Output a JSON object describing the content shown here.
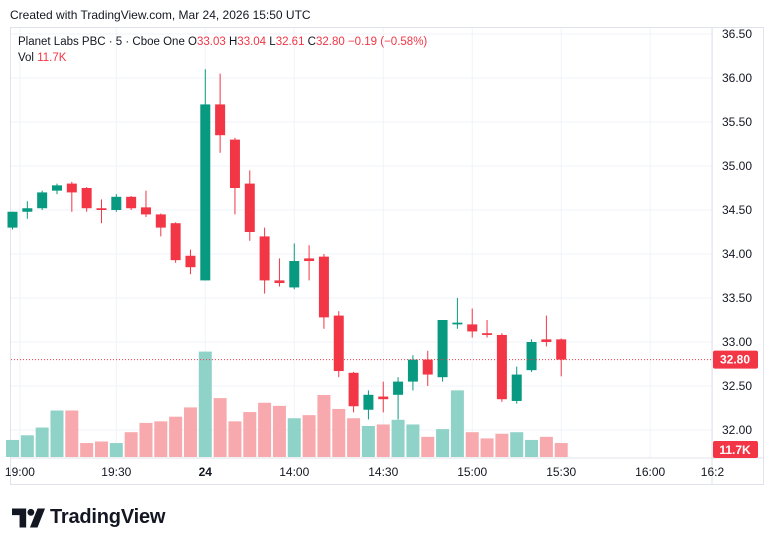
{
  "header": {
    "text": "Created with TradingView.com, Mar 24, 2026 15:50 UTC"
  },
  "legend": {
    "symbol": "Planet Labs PBC · 5 · Cboe One",
    "o_label": "O",
    "o_value": "33.03",
    "h_label": "H",
    "h_value": "33.04",
    "l_label": "L",
    "l_value": "32.61",
    "c_label": "C",
    "c_value": "32.80",
    "change": "−0.19 (−0.58%)",
    "vol_label": "Vol",
    "vol_value": "11.7K"
  },
  "footer": {
    "brand": "TradingView"
  },
  "colors": {
    "up": "#089981",
    "down": "#f23645",
    "vol_up": "#8fd2c8",
    "vol_down": "#f7a9ad",
    "grid": "#f0f3fa"
  },
  "chart_data": {
    "type": "candlestick",
    "y_ticks": [
      "36.50",
      "36.00",
      "35.50",
      "35.00",
      "34.50",
      "34.00",
      "33.50",
      "33.00",
      "32.50",
      "32.00"
    ],
    "y_range": [
      31.85,
      36.65
    ],
    "x_ticks": [
      {
        "label": "19:00",
        "slot": 0.5,
        "bold": false
      },
      {
        "label": "19:30",
        "slot": 7,
        "bold": false
      },
      {
        "label": "24",
        "slot": 13,
        "bold": true
      },
      {
        "label": "14:00",
        "slot": 19,
        "bold": false
      },
      {
        "label": "14:30",
        "slot": 25,
        "bold": false
      },
      {
        "label": "15:00",
        "slot": 31,
        "bold": false
      },
      {
        "label": "15:30",
        "slot": 37,
        "bold": false
      },
      {
        "label": "16:00",
        "slot": 43,
        "bold": false
      },
      {
        "label": "16:2",
        "slot": 47.2,
        "bold": false
      }
    ],
    "last_price": "32.80",
    "last_volume": "11.7K",
    "candles": [
      {
        "o": 34.3,
        "h": 34.48,
        "l": 34.28,
        "c": 34.48,
        "v": 1.1
      },
      {
        "o": 34.48,
        "h": 34.6,
        "l": 34.4,
        "c": 34.52,
        "v": 1.4
      },
      {
        "o": 34.52,
        "h": 34.72,
        "l": 34.5,
        "c": 34.7,
        "v": 1.9
      },
      {
        "o": 34.72,
        "h": 34.8,
        "l": 34.68,
        "c": 34.78,
        "v": 3.0
      },
      {
        "o": 34.8,
        "h": 34.82,
        "l": 34.48,
        "c": 34.7,
        "v": 3.0
      },
      {
        "o": 34.75,
        "h": 34.76,
        "l": 34.48,
        "c": 34.52,
        "v": 0.9
      },
      {
        "o": 34.52,
        "h": 34.62,
        "l": 34.35,
        "c": 34.5,
        "v": 1.0
      },
      {
        "o": 34.5,
        "h": 34.68,
        "l": 34.48,
        "c": 34.65,
        "v": 0.9
      },
      {
        "o": 34.65,
        "h": 34.66,
        "l": 34.5,
        "c": 34.52,
        "v": 1.6
      },
      {
        "o": 34.53,
        "h": 34.72,
        "l": 34.42,
        "c": 34.45,
        "v": 2.2
      },
      {
        "o": 34.45,
        "h": 34.46,
        "l": 34.2,
        "c": 34.3,
        "v": 2.3
      },
      {
        "o": 34.35,
        "h": 34.36,
        "l": 33.9,
        "c": 33.93,
        "v": 2.6
      },
      {
        "o": 33.98,
        "h": 34.05,
        "l": 33.77,
        "c": 33.85,
        "v": 3.2
      },
      {
        "o": 33.7,
        "h": 36.1,
        "l": 33.7,
        "c": 35.7,
        "v": 6.8
      },
      {
        "o": 35.7,
        "h": 36.05,
        "l": 35.15,
        "c": 35.35,
        "v": 3.8
      },
      {
        "o": 35.3,
        "h": 35.32,
        "l": 34.45,
        "c": 34.75,
        "v": 2.3
      },
      {
        "o": 34.8,
        "h": 34.95,
        "l": 34.15,
        "c": 34.25,
        "v": 2.9
      },
      {
        "o": 34.2,
        "h": 34.3,
        "l": 33.55,
        "c": 33.7,
        "v": 3.5
      },
      {
        "o": 33.7,
        "h": 33.95,
        "l": 33.63,
        "c": 33.67,
        "v": 3.3
      },
      {
        "o": 33.62,
        "h": 34.12,
        "l": 33.6,
        "c": 33.92,
        "v": 2.5
      },
      {
        "o": 33.95,
        "h": 34.1,
        "l": 33.7,
        "c": 33.92,
        "v": 2.7
      },
      {
        "o": 33.97,
        "h": 34.0,
        "l": 33.15,
        "c": 33.28,
        "v": 4.0
      },
      {
        "o": 33.3,
        "h": 33.35,
        "l": 32.6,
        "c": 32.67,
        "v": 3.1
      },
      {
        "o": 32.65,
        "h": 32.66,
        "l": 32.2,
        "c": 32.27,
        "v": 2.5
      },
      {
        "o": 32.23,
        "h": 32.45,
        "l": 32.12,
        "c": 32.4,
        "v": 2.0
      },
      {
        "o": 32.38,
        "h": 32.55,
        "l": 32.2,
        "c": 32.35,
        "v": 2.1
      },
      {
        "o": 32.4,
        "h": 32.6,
        "l": 32.12,
        "c": 32.55,
        "v": 2.4
      },
      {
        "o": 32.55,
        "h": 32.85,
        "l": 32.45,
        "c": 32.8,
        "v": 2.1
      },
      {
        "o": 32.8,
        "h": 32.9,
        "l": 32.5,
        "c": 32.63,
        "v": 1.3
      },
      {
        "o": 32.6,
        "h": 33.23,
        "l": 32.55,
        "c": 33.25,
        "v": 1.8
      },
      {
        "o": 33.2,
        "h": 33.5,
        "l": 33.15,
        "c": 33.22,
        "v": 4.3
      },
      {
        "o": 33.2,
        "h": 33.38,
        "l": 33.05,
        "c": 33.12,
        "v": 1.6
      },
      {
        "o": 33.1,
        "h": 33.25,
        "l": 33.05,
        "c": 33.08,
        "v": 1.2
      },
      {
        "o": 33.08,
        "h": 33.1,
        "l": 32.32,
        "c": 32.35,
        "v": 1.5
      },
      {
        "o": 32.33,
        "h": 32.72,
        "l": 32.3,
        "c": 32.63,
        "v": 1.6
      },
      {
        "o": 32.68,
        "h": 33.03,
        "l": 32.66,
        "c": 33.0,
        "v": 1.1
      },
      {
        "o": 33.03,
        "h": 33.3,
        "l": 32.95,
        "c": 33.0,
        "v": 1.3
      },
      {
        "o": 33.03,
        "h": 33.04,
        "l": 32.61,
        "c": 32.8,
        "v": 0.9
      }
    ]
  }
}
